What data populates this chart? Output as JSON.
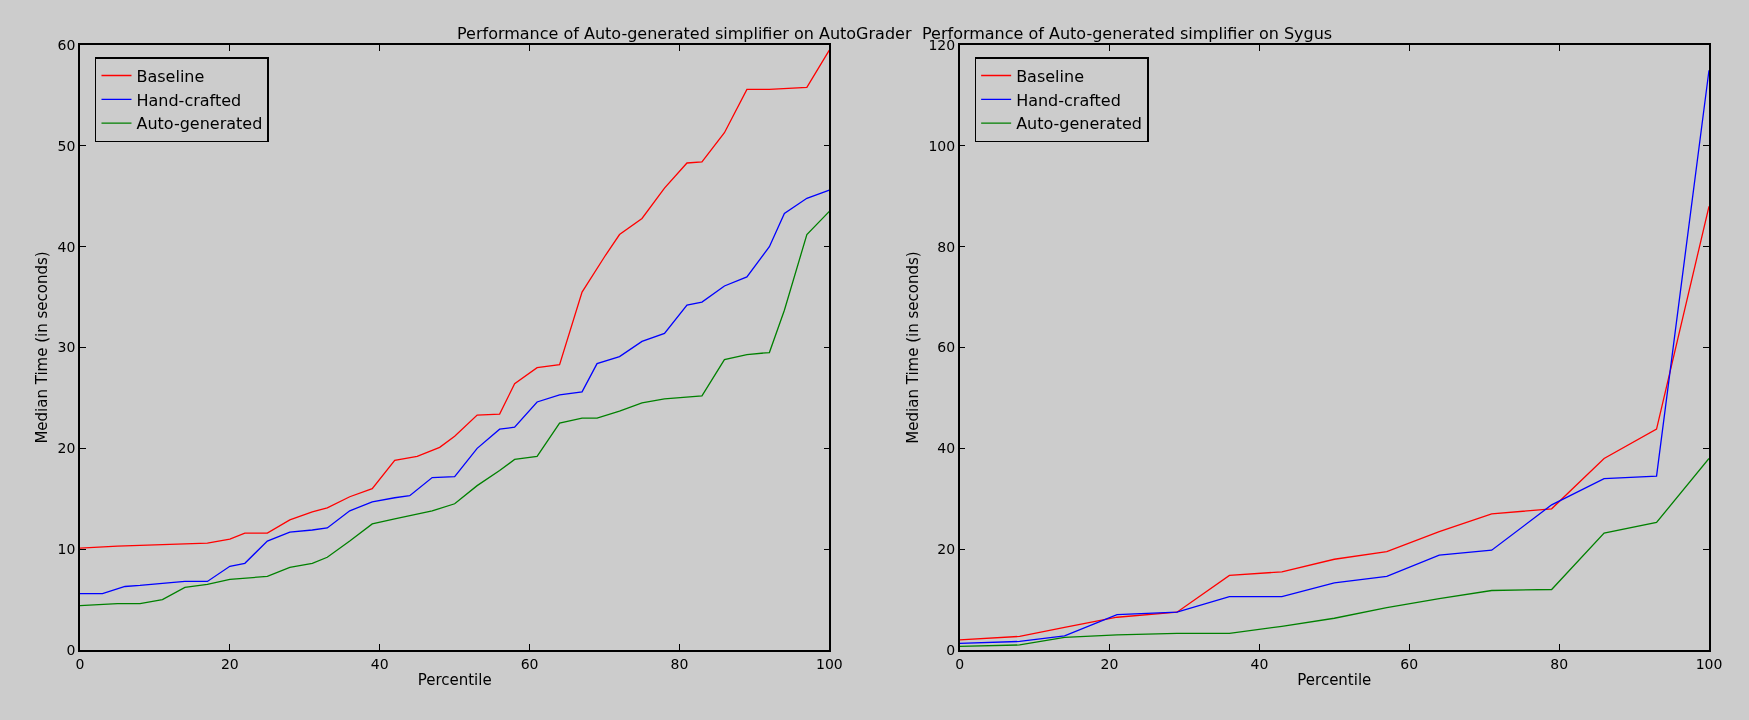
{
  "chart_data": [
    {
      "type": "line",
      "title": "Performance of Auto-generated simplifier on AutoGrader",
      "xlabel": "Percentile",
      "ylabel": "Median Time (in seconds)",
      "xlim": [
        0,
        100
      ],
      "ylim": [
        0,
        60
      ],
      "xticks": [
        0,
        20,
        40,
        60,
        80,
        100
      ],
      "yticks": [
        0,
        10,
        20,
        30,
        40,
        50,
        60
      ],
      "grid": false,
      "legend": "top left",
      "marker": "none",
      "line_style": "solid",
      "series": [
        {
          "name": "Baseline",
          "color": "#ff0000",
          "x": [
            0,
            5,
            17,
            20,
            22,
            25,
            28,
            31,
            33,
            36,
            39,
            42,
            45,
            48,
            50,
            53,
            56,
            58,
            61,
            64,
            67,
            70,
            72,
            75,
            78,
            81,
            83,
            86,
            89,
            92,
            97,
            100
          ],
          "values": [
            10.1,
            10.3,
            10.6,
            11,
            11.6,
            11.6,
            12.9,
            13.7,
            14.1,
            15.2,
            16,
            18.8,
            19.2,
            20.1,
            21.2,
            23.3,
            23.4,
            26.4,
            28,
            28.3,
            35.5,
            39,
            41.2,
            42.8,
            45.8,
            48.3,
            48.4,
            51.3,
            55.6,
            55.6,
            55.8,
            59.5
          ]
        },
        {
          "name": "Hand-crafted",
          "color": "#0000ff",
          "x": [
            0,
            3,
            6,
            8,
            11,
            14,
            17,
            20,
            22,
            25,
            28,
            31,
            33,
            36,
            39,
            42,
            44,
            47,
            50,
            53,
            56,
            58,
            61,
            64,
            67,
            69,
            72,
            75,
            78,
            81,
            83,
            86,
            89,
            92,
            94,
            97,
            100
          ],
          "values": [
            5.6,
            5.6,
            6.3,
            6.4,
            6.6,
            6.8,
            6.8,
            8.3,
            8.6,
            10.8,
            11.7,
            11.9,
            12.1,
            13.8,
            14.7,
            15.1,
            15.3,
            17.1,
            17.2,
            20,
            21.9,
            22.1,
            24.6,
            25.3,
            25.6,
            28.4,
            29.1,
            30.6,
            31.4,
            34.2,
            34.5,
            36.1,
            37,
            40,
            43.3,
            44.8,
            45.6
          ]
        },
        {
          "name": "Auto-generated",
          "color": "#008000",
          "x": [
            0,
            5,
            8,
            11,
            14,
            17,
            20,
            25,
            28,
            31,
            33,
            36,
            39,
            42,
            47,
            50,
            53,
            56,
            58,
            61,
            64,
            67,
            69,
            72,
            75,
            78,
            83,
            86,
            89,
            92,
            94,
            97,
            100
          ],
          "values": [
            4.4,
            4.6,
            4.6,
            5,
            6.2,
            6.5,
            7,
            7.3,
            8.2,
            8.6,
            9.2,
            10.8,
            12.5,
            13,
            13.8,
            14.5,
            16.3,
            17.8,
            18.9,
            19.2,
            22.5,
            23,
            23,
            23.7,
            24.5,
            24.9,
            25.2,
            28.8,
            29.3,
            29.5,
            33.7,
            41.2,
            43.5
          ]
        }
      ]
    },
    {
      "type": "line",
      "title": "Performance of Auto-generated simplifier on Sygus",
      "xlabel": "Percentile",
      "ylabel": "Median Time (in seconds)",
      "xlim": [
        0,
        100
      ],
      "ylim": [
        0,
        120
      ],
      "xticks": [
        0,
        20,
        40,
        60,
        80,
        100
      ],
      "yticks": [
        0,
        20,
        40,
        60,
        80,
        100,
        120
      ],
      "grid": false,
      "legend": "top left",
      "marker": "none",
      "line_style": "solid",
      "x": [
        0,
        8,
        14,
        21,
        29,
        36,
        43,
        50,
        57,
        64,
        71,
        79,
        86,
        93,
        100
      ],
      "series": [
        {
          "name": "Baseline",
          "color": "#ff0000",
          "values": [
            2,
            2.7,
            4.5,
            6.5,
            7.5,
            14.8,
            15.5,
            18,
            19.5,
            23.5,
            27,
            28,
            38,
            43.8,
            88
          ]
        },
        {
          "name": "Hand-crafted",
          "color": "#0000ff",
          "values": [
            1.3,
            1.7,
            2.8,
            7,
            7.5,
            10.6,
            10.6,
            13.3,
            14.6,
            18.8,
            19.8,
            28.8,
            34,
            34.5,
            115
          ]
        },
        {
          "name": "Auto-generated",
          "color": "#008000",
          "values": [
            0.7,
            1,
            2.5,
            3,
            3.3,
            3.3,
            4.7,
            6.3,
            8.4,
            10.2,
            11.8,
            12,
            23.2,
            25.3,
            38
          ]
        }
      ]
    }
  ]
}
